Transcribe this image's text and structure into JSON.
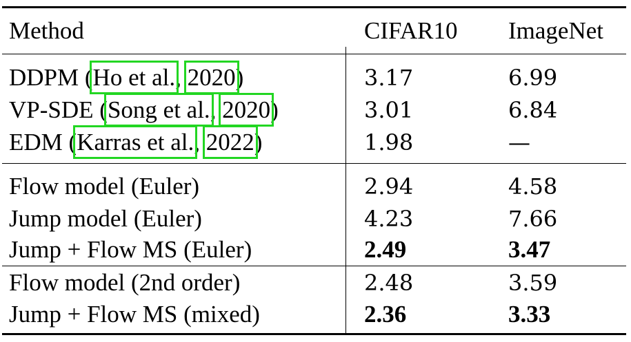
{
  "table": {
    "headers": [
      "Method",
      "CIFAR10",
      "ImageNet"
    ],
    "groups": [
      {
        "rows": [
          {
            "method_pre": "DDPM (",
            "cite": "Ho et al.",
            "sep": ", ",
            "year": "2020",
            "close": ")",
            "cifar": "3.17",
            "imagenet": "6.99",
            "bold": false
          },
          {
            "method_pre": "VP-SDE (",
            "cite": "Song et al.",
            "sep": ", ",
            "year": "2020",
            "close": ")",
            "cifar": "3.01",
            "imagenet": "6.84",
            "bold": false
          },
          {
            "method_pre": "EDM (",
            "cite": "Karras et al.",
            "sep": ", ",
            "year": "2022",
            "close": ")",
            "cifar": "1.98",
            "imagenet": "—",
            "bold": false
          }
        ]
      },
      {
        "rows": [
          {
            "method": "Flow model (Euler)",
            "cifar": "2.94",
            "imagenet": "4.58",
            "bold": false
          },
          {
            "method": "Jump model (Euler)",
            "cifar": "4.23",
            "imagenet": "7.66",
            "bold": false
          },
          {
            "method": "Jump + Flow MS (Euler)",
            "cifar": "2.49",
            "imagenet": "3.47",
            "bold": true
          }
        ]
      },
      {
        "rows": [
          {
            "method": "Flow model (2nd order)",
            "cifar": "2.48",
            "imagenet": "3.59",
            "bold": false
          },
          {
            "method": "Jump + Flow MS (mixed)",
            "cifar": "2.36",
            "imagenet": "3.33",
            "bold": true
          }
        ]
      }
    ],
    "highlight_color": "#22d622"
  }
}
